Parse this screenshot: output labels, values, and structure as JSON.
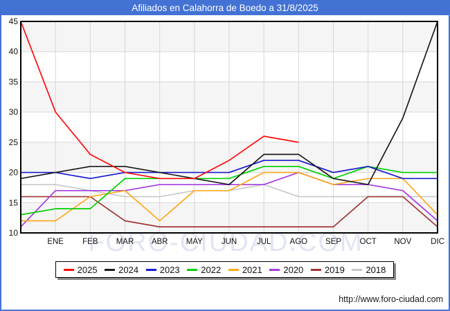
{
  "window": {
    "title": "Afiliados en Calahorra de Boedo a 31/8/2025",
    "footer_url": "http://www.foro-ciudad.com",
    "watermark": "FORO-CIUDAD.COM"
  },
  "colors": {
    "frame_blue": "#4372d4",
    "titlebar_blue": "#4372d4",
    "band_gray": "#f5f5f5",
    "band_white": "#ffffff",
    "gridline": "#d6d6d6",
    "plot_border": "#000000",
    "axis_text": "#111111",
    "watermark": "#e1e4f3"
  },
  "chart_data": {
    "type": "line",
    "title": "Afiliados en Calahorra de Boedo a 31/8/2025",
    "xlabel": "",
    "ylabel": "",
    "x_labels": [
      "ENE",
      "FEB",
      "MAR",
      "ABR",
      "MAY",
      "JUN",
      "JUL",
      "AGO",
      "SEP",
      "OCT",
      "NOV",
      "DIC"
    ],
    "y_ticks": [
      45,
      40,
      35,
      30,
      25,
      20,
      15,
      10
    ],
    "ylim": [
      10,
      45
    ],
    "grid": true,
    "legend_position": "bottom",
    "layout_note": "each series has an extra leading point on the left axis (previous December value); months fall on the 12 gridlines",
    "series": [
      {
        "name": "2025",
        "color": "#ff0a0a",
        "values": [
          45,
          30,
          23,
          20,
          19,
          19,
          22,
          26,
          25
        ]
      },
      {
        "name": "2024",
        "color": "#1a1a1a",
        "values": [
          19,
          20,
          21,
          21,
          20,
          19,
          18,
          23,
          23,
          19,
          18,
          29,
          45
        ]
      },
      {
        "name": "2023",
        "color": "#1717cf",
        "values": [
          20,
          20,
          19,
          20,
          20,
          20,
          20,
          22,
          22,
          20,
          21,
          19,
          19
        ]
      },
      {
        "name": "2022",
        "color": "#00d000",
        "values": [
          13,
          14,
          14,
          19,
          19,
          19,
          19,
          21,
          21,
          19,
          21,
          20,
          20
        ]
      },
      {
        "name": "2021",
        "color": "#ffa81c",
        "values": [
          12,
          12,
          16,
          17,
          12,
          17,
          17,
          20,
          20,
          18,
          19,
          19,
          13
        ]
      },
      {
        "name": "2020",
        "color": "#a43ae1",
        "values": [
          11,
          17,
          17,
          17,
          18,
          18,
          18,
          18,
          20,
          18,
          18,
          17,
          12
        ]
      },
      {
        "name": "2019",
        "color": "#9e3434",
        "values": [
          16,
          16,
          16,
          12,
          11,
          11,
          11,
          11,
          11,
          11,
          16,
          16,
          11
        ]
      },
      {
        "name": "2018",
        "color": "#c8c8c8",
        "values": [
          18,
          18,
          17,
          16,
          16,
          17,
          17,
          18,
          16,
          16,
          16,
          16,
          16
        ]
      }
    ],
    "legend_order": [
      "2025",
      "2024",
      "2023",
      "2022",
      "2021",
      "2020",
      "2019",
      "2018"
    ]
  }
}
